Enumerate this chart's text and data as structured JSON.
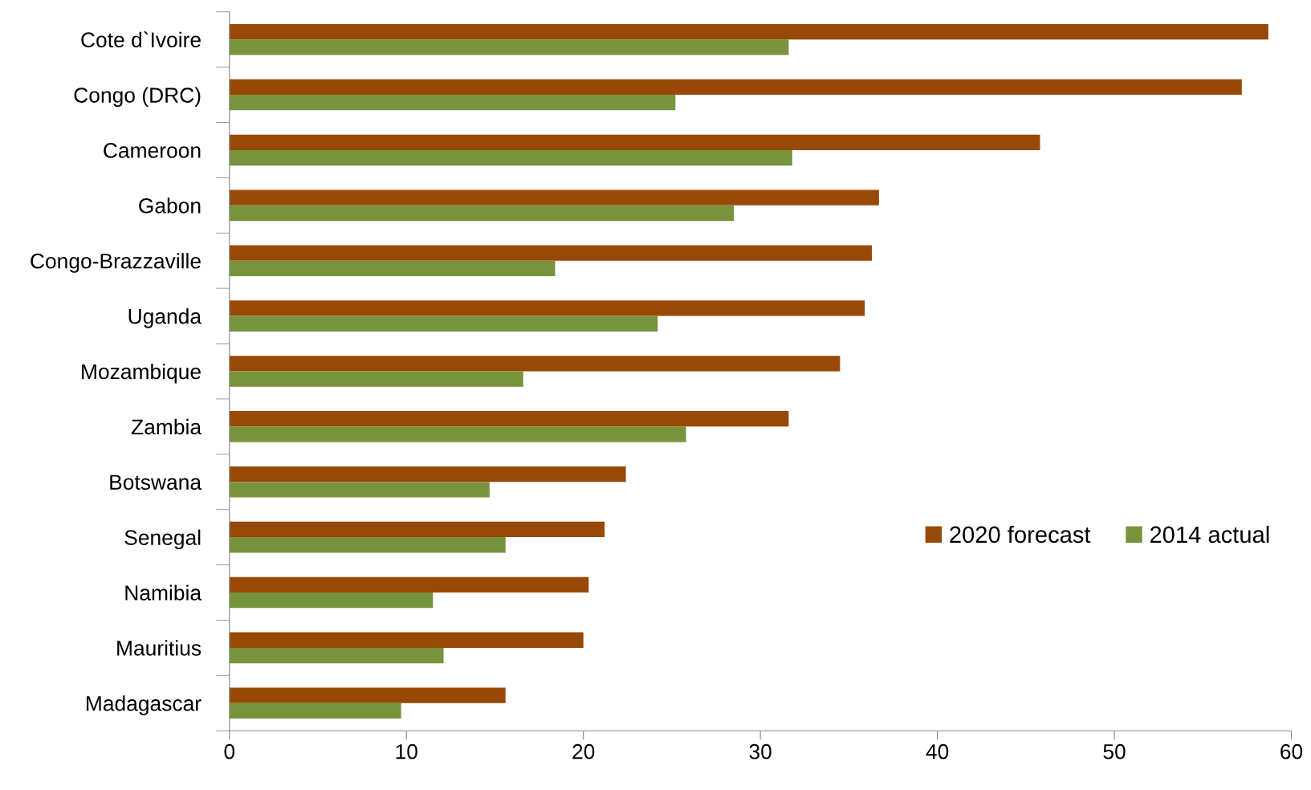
{
  "chart_data": {
    "type": "bar",
    "orientation": "horizontal",
    "categories": [
      "Cote d`Ivoire",
      "Congo (DRC)",
      "Cameroon",
      "Gabon",
      "Congo-Brazzaville",
      "Uganda",
      "Mozambique",
      "Zambia",
      "Botswana",
      "Senegal",
      "Namibia",
      "Mauritius",
      "Madagascar"
    ],
    "series": [
      {
        "name": "2020 forecast",
        "color": "#984807",
        "values": [
          58.7,
          57.2,
          45.8,
          36.7,
          36.3,
          35.9,
          34.5,
          31.6,
          22.4,
          21.2,
          20.3,
          20.0,
          15.6
        ]
      },
      {
        "name": "2014 actual",
        "color": "#77933c",
        "values": [
          31.6,
          25.2,
          31.8,
          28.5,
          18.4,
          24.2,
          16.6,
          25.8,
          14.7,
          15.6,
          11.5,
          12.1,
          9.7
        ]
      }
    ],
    "xlim": [
      0,
      60
    ],
    "xticks": [
      0,
      10,
      20,
      30,
      40,
      50,
      60
    ],
    "grid": false,
    "legend": "right"
  }
}
